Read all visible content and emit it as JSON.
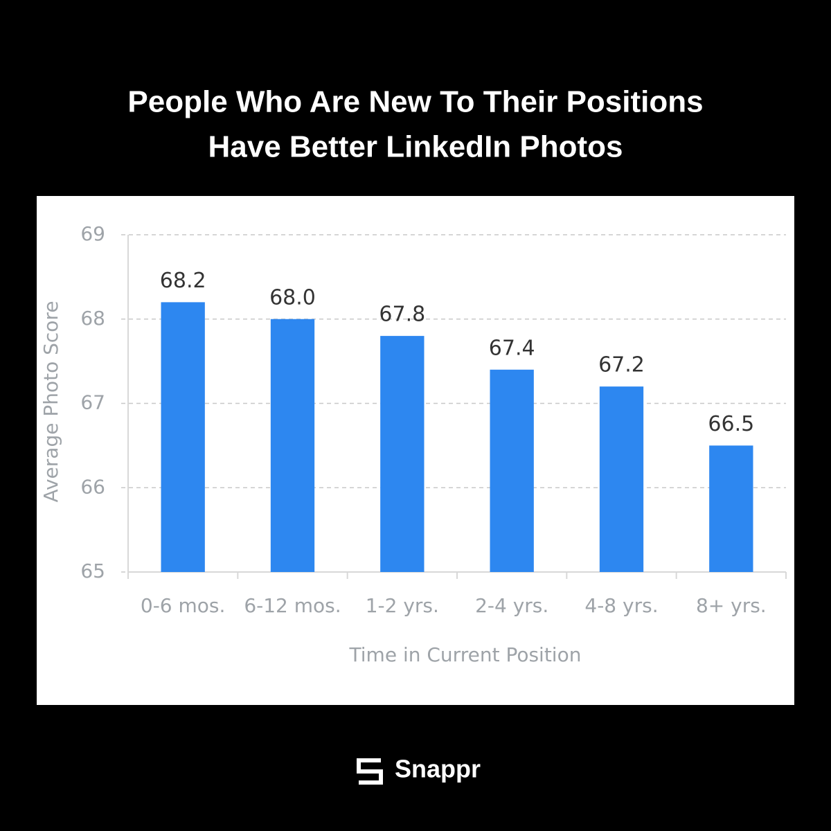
{
  "chart_data": {
    "type": "bar",
    "title": [
      "People Who Are New To Their Positions",
      "Have Better LinkedIn Photos"
    ],
    "categories": [
      "0-6 mos.",
      "6-12 mos.",
      "1-2 yrs.",
      "2-4 yrs.",
      "4-8 yrs.",
      "8+ yrs."
    ],
    "values": [
      68.2,
      68.0,
      67.8,
      67.4,
      67.2,
      66.5
    ],
    "value_labels": [
      "68.2",
      "68.0",
      "67.8",
      "67.4",
      "67.2",
      "66.5"
    ],
    "color": "#2d87f0",
    "x_label": "Time in Current Position",
    "y_label": "Average Photo Score",
    "ylim": [
      65,
      69
    ],
    "yticks": [
      65,
      66,
      67,
      68,
      69
    ],
    "grid": true
  },
  "brand": "Snappr"
}
